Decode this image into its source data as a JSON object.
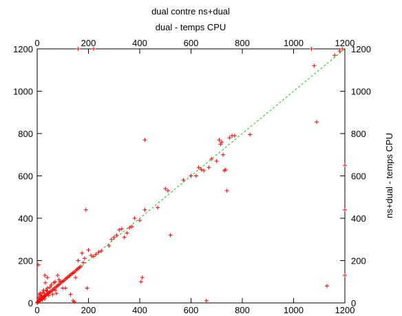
{
  "chart_data": {
    "type": "scatter",
    "title": "dual contre ns+dual",
    "xlabel": "dual - temps CPU",
    "ylabel": "ns+dual - temps CPU",
    "xlim": [
      0,
      1200
    ],
    "ylim": [
      0,
      1200
    ],
    "x_ticks": [
      "0",
      "200",
      "400",
      "600",
      "800",
      "1000",
      "1200"
    ],
    "y_ticks": [
      "0",
      "200",
      "400",
      "600",
      "800",
      "1000",
      "1200"
    ],
    "grid": false,
    "reference_line": {
      "x": [
        0,
        1200
      ],
      "y": [
        0,
        1200
      ],
      "color": "#00cc00",
      "style": "dashed"
    },
    "point_color": "#ff0000",
    "marker": "plus",
    "points": [
      [
        0,
        0
      ],
      [
        2,
        3
      ],
      [
        3,
        5
      ],
      [
        5,
        6
      ],
      [
        6,
        9
      ],
      [
        8,
        10
      ],
      [
        10,
        12
      ],
      [
        12,
        14
      ],
      [
        14,
        16
      ],
      [
        16,
        18
      ],
      [
        18,
        20
      ],
      [
        20,
        22
      ],
      [
        22,
        24
      ],
      [
        24,
        26
      ],
      [
        26,
        28
      ],
      [
        28,
        30
      ],
      [
        30,
        33
      ],
      [
        34,
        36
      ],
      [
        38,
        40
      ],
      [
        42,
        44
      ],
      [
        46,
        48
      ],
      [
        50,
        52
      ],
      [
        55,
        56
      ],
      [
        60,
        62
      ],
      [
        65,
        66
      ],
      [
        70,
        72
      ],
      [
        75,
        76
      ],
      [
        80,
        82
      ],
      [
        85,
        86
      ],
      [
        90,
        92
      ],
      [
        95,
        98
      ],
      [
        100,
        102
      ],
      [
        105,
        106
      ],
      [
        110,
        112
      ],
      [
        115,
        118
      ],
      [
        120,
        122
      ],
      [
        125,
        128
      ],
      [
        130,
        132
      ],
      [
        135,
        138
      ],
      [
        140,
        142
      ],
      [
        145,
        146
      ],
      [
        150,
        152
      ],
      [
        155,
        158
      ],
      [
        160,
        162
      ],
      [
        165,
        168
      ],
      [
        170,
        172
      ],
      [
        5,
        25
      ],
      [
        8,
        40
      ],
      [
        10,
        20
      ],
      [
        12,
        45
      ],
      [
        15,
        30
      ],
      [
        18,
        35
      ],
      [
        20,
        15
      ],
      [
        22,
        50
      ],
      [
        25,
        60
      ],
      [
        28,
        45
      ],
      [
        30,
        20
      ],
      [
        32,
        95
      ],
      [
        35,
        60
      ],
      [
        38,
        55
      ],
      [
        40,
        70
      ],
      [
        45,
        35
      ],
      [
        50,
        75
      ],
      [
        55,
        85
      ],
      [
        60,
        40
      ],
      [
        65,
        95
      ],
      [
        70,
        60
      ],
      [
        75,
        45
      ],
      [
        80,
        130
      ],
      [
        85,
        110
      ],
      [
        90,
        100
      ],
      [
        5,
        180
      ],
      [
        30,
        130
      ],
      [
        40,
        120
      ],
      [
        70,
        100
      ],
      [
        100,
        70
      ],
      [
        110,
        70
      ],
      [
        150,
        120
      ],
      [
        160,
        200
      ],
      [
        175,
        235
      ],
      [
        180,
        190
      ],
      [
        185,
        210
      ],
      [
        190,
        440
      ],
      [
        195,
        70
      ],
      [
        200,
        250
      ],
      [
        210,
        225
      ],
      [
        220,
        220
      ],
      [
        230,
        230
      ],
      [
        240,
        240
      ],
      [
        250,
        245
      ],
      [
        130,
        40
      ],
      [
        140,
        10
      ],
      [
        145,
        5
      ],
      [
        160,
        1200
      ],
      [
        220,
        1200
      ],
      [
        280,
        270
      ],
      [
        290,
        300
      ],
      [
        300,
        310
      ],
      [
        310,
        320
      ],
      [
        320,
        345
      ],
      [
        330,
        350
      ],
      [
        340,
        310
      ],
      [
        350,
        330
      ],
      [
        360,
        355
      ],
      [
        370,
        360
      ],
      [
        380,
        400
      ],
      [
        400,
        390
      ],
      [
        420,
        440
      ],
      [
        405,
        100
      ],
      [
        410,
        120
      ],
      [
        420,
        770
      ],
      [
        470,
        450
      ],
      [
        500,
        540
      ],
      [
        510,
        530
      ],
      [
        520,
        320
      ],
      [
        570,
        580
      ],
      [
        600,
        600
      ],
      [
        620,
        600
      ],
      [
        630,
        640
      ],
      [
        640,
        630
      ],
      [
        650,
        625
      ],
      [
        660,
        10
      ],
      [
        670,
        640
      ],
      [
        680,
        680
      ],
      [
        700,
        670
      ],
      [
        710,
        770
      ],
      [
        715,
        750
      ],
      [
        720,
        760
      ],
      [
        725,
        700
      ],
      [
        730,
        625
      ],
      [
        735,
        630
      ],
      [
        740,
        530
      ],
      [
        750,
        780
      ],
      [
        760,
        790
      ],
      [
        770,
        790
      ],
      [
        830,
        795
      ],
      [
        1070,
        1200
      ],
      [
        1080,
        1120
      ],
      [
        1090,
        855
      ],
      [
        1130,
        80
      ],
      [
        1160,
        1170
      ],
      [
        1180,
        1190
      ],
      [
        1190,
        1200
      ],
      [
        1200,
        130
      ],
      [
        1200,
        440
      ],
      [
        1200,
        650
      ]
    ]
  }
}
